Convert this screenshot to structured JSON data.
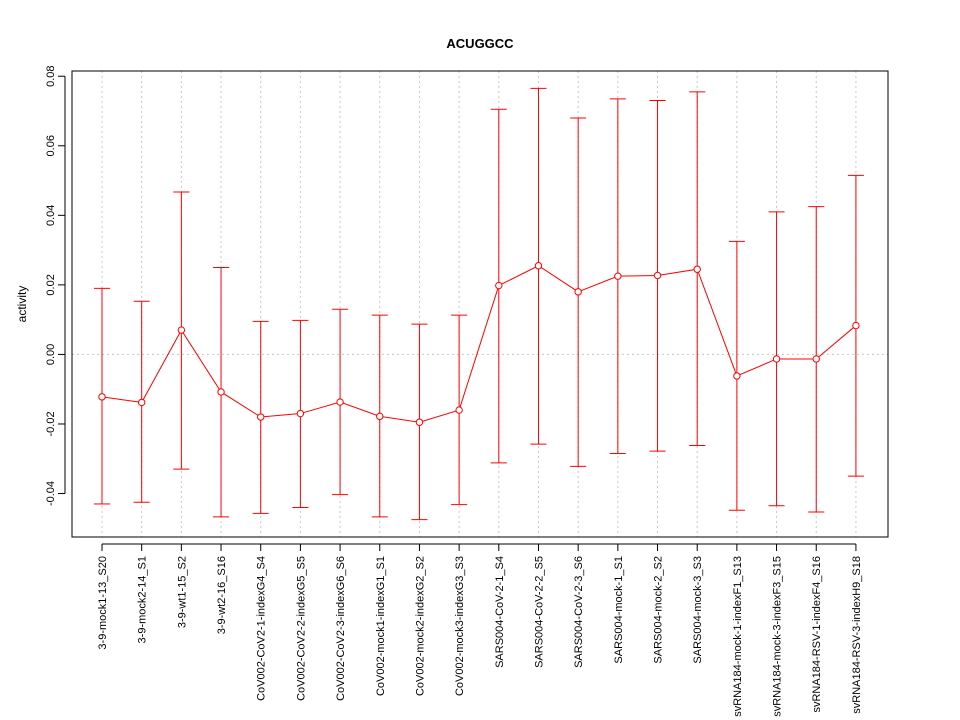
{
  "chart_data": {
    "type": "line",
    "title": "ACUGGCC",
    "xlabel": "",
    "ylabel": "activity",
    "ylim": [
      -0.0525,
      0.0815
    ],
    "yticks": [
      -0.04,
      -0.02,
      0.0,
      0.02,
      0.04,
      0.06,
      0.08
    ],
    "ytick_labels": [
      "-0.04",
      "-0.02",
      "0.00",
      "0.02",
      "0.04",
      "0.06",
      "0.08"
    ],
    "grid": true,
    "colors": {
      "series": "#ff0000",
      "grid": "#c8c8c8",
      "axis": "#000000"
    },
    "categories": [
      "3-9-mock1-13_S20",
      "3-9-mock2-14_S1",
      "3-9-wt1-15_S2",
      "3-9-wt2-16_S16",
      "CoV002-CoV2-1-indexG4_S4",
      "CoV002-CoV2-2-indexG5_S5",
      "CoV002-CoV2-3-indexG6_S6",
      "CoV002-mock1-indexG1_S1",
      "CoV002-mock2-indexG2_S2",
      "CoV002-mock3-indexG3_S3",
      "SARS004-CoV-2-1_S4",
      "SARS004-CoV-2-2_S5",
      "SARS004-CoV-2-3_S6",
      "SARS004-mock-1_S1",
      "SARS004-mock-2_S2",
      "SARS004-mock-3_S3",
      "svRNA184-mock-1-indexF1_S13",
      "svRNA184-mock-3-indexF3_S15",
      "svRNA184-RSV-1-indexF4_S16",
      "svRNA184-RSV-3-indexH9_S18"
    ],
    "series": [
      {
        "values": [
          -0.0122,
          -0.0138,
          0.007,
          -0.0108,
          -0.018,
          -0.017,
          -0.0137,
          -0.0178,
          -0.0195,
          -0.016,
          0.0198,
          0.0255,
          0.018,
          0.0225,
          0.0227,
          0.0245,
          -0.0062,
          -0.0013,
          -0.0013,
          0.0083
        ],
        "upper": [
          0.019,
          0.0153,
          0.0467,
          0.025,
          0.0095,
          0.0098,
          0.013,
          0.0113,
          0.0087,
          0.0113,
          0.0705,
          0.0765,
          0.068,
          0.0735,
          0.073,
          0.0755,
          0.0325,
          0.041,
          0.0425,
          0.0515
        ],
        "lower": [
          -0.043,
          -0.0425,
          -0.033,
          -0.0467,
          -0.0457,
          -0.044,
          -0.0403,
          -0.0467,
          -0.0475,
          -0.0432,
          -0.0312,
          -0.0258,
          -0.0322,
          -0.0285,
          -0.0278,
          -0.0262,
          -0.0448,
          -0.0435,
          -0.0453,
          -0.035
        ]
      }
    ]
  }
}
